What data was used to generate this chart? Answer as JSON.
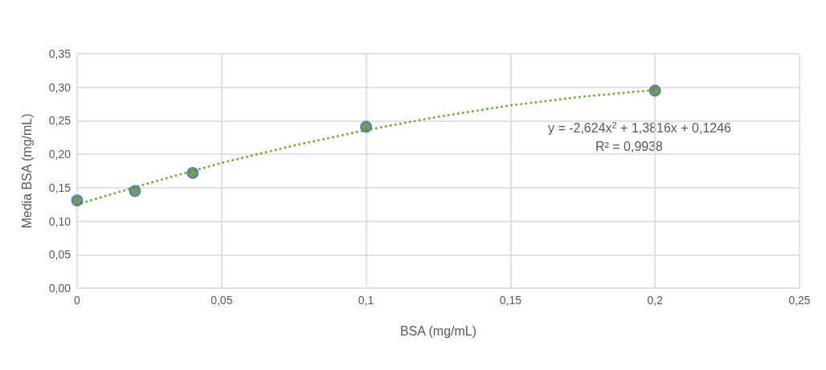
{
  "chart_data": {
    "type": "scatter",
    "xlabel": "BSA (mg/mL)",
    "ylabel": "Media BSA (mg/mL)",
    "series": [
      {
        "type": "scatter",
        "color": "#548235",
        "x": [
          0,
          0.02,
          0.04,
          0.1,
          0.2
        ],
        "values": [
          0.131,
          0.145,
          0.172,
          0.241,
          0.295
        ]
      },
      {
        "type": "line",
        "color": "#70ad47",
        "line_style": "dotted",
        "marker": "none",
        "x": [
          0,
          0.025,
          0.05,
          0.075,
          0.1,
          0.125,
          0.15,
          0.175,
          0.2
        ],
        "values": [
          0.125,
          0.157,
          0.187,
          0.213,
          0.236,
          0.256,
          0.273,
          0.286,
          0.296
        ]
      }
    ],
    "marker": "circle",
    "xlim": [
      0,
      0.25
    ],
    "xticks": [
      0,
      {
        "value": 0.05,
        "label": "0,05"
      },
      {
        "value": 0.1,
        "label": "0,1"
      },
      {
        "value": 0.15,
        "label": "0,15"
      },
      {
        "value": 0.2,
        "label": "0,2"
      },
      {
        "value": 0.25,
        "label": "0,25"
      }
    ],
    "ylim": [
      0,
      0.35
    ],
    "yticks": [
      {
        "value": 0,
        "label": "0,00"
      },
      {
        "value": 0.05,
        "label": "0,05"
      },
      {
        "value": 0.1,
        "label": "0,10"
      },
      {
        "value": 0.15,
        "label": "0,15"
      },
      {
        "value": 0.2,
        "label": "0,20"
      },
      {
        "value": 0.25,
        "label": "0,25"
      },
      {
        "value": 0.3,
        "label": "0,30"
      },
      {
        "value": 0.35,
        "label": "0,35"
      }
    ],
    "grid": true,
    "annotations": [
      "y = -2,624x$^{2}$ + 1,3816x + 0,1246",
      "R² = 0,9938"
    ]
  }
}
